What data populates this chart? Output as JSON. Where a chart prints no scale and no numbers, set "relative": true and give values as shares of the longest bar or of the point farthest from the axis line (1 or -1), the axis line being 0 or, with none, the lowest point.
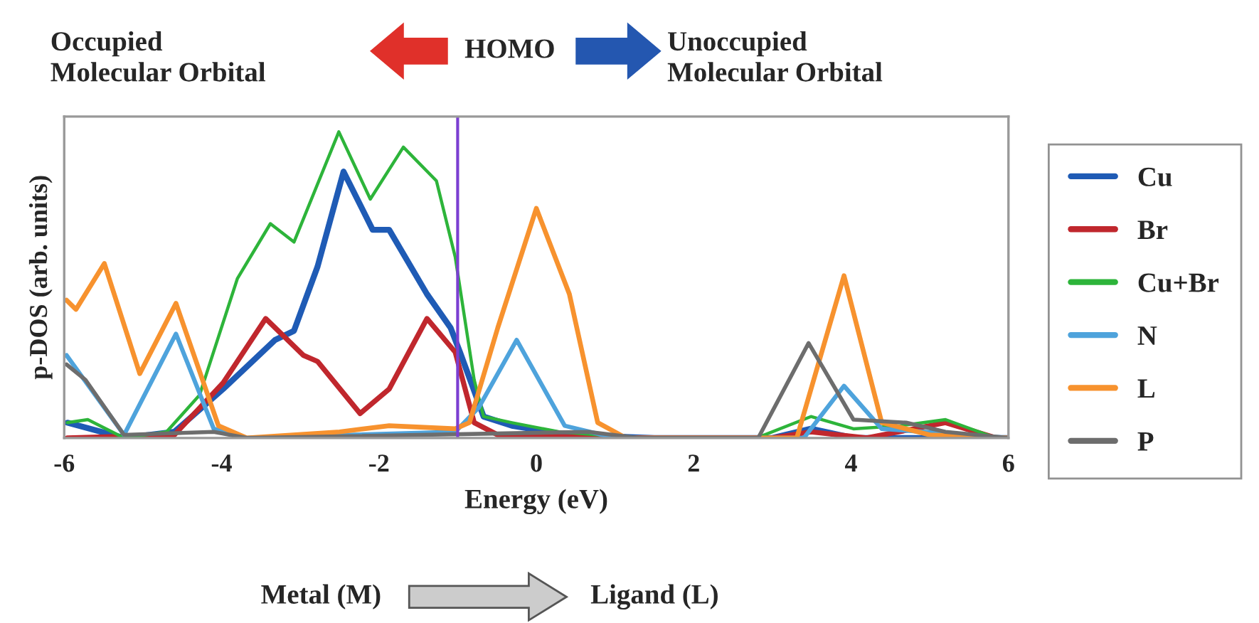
{
  "chart_data": {
    "type": "line",
    "relative": true,
    "xlabel": "Energy (eV)",
    "ylabel": "p-DOS (arb. units)",
    "xlim": [
      -6,
      6
    ],
    "xticks": [
      -6,
      -4,
      -2,
      0,
      2,
      4,
      6
    ],
    "grid": false,
    "legend": "right",
    "marker": "none",
    "line_style": "solid",
    "ref_lines": [
      {
        "axis": "x",
        "value": -1,
        "color": "#7b3fd1"
      }
    ],
    "annotations": [
      "Occupied\nMolecular Orbital",
      "HOMO",
      "Unoccupied\nMolecular Orbital",
      "Metal (M)",
      "Ligand (L)"
    ],
    "series": [
      {
        "name": "Cu",
        "color": "#1f5bb5",
        "x": [
          -5.96,
          -5.24,
          -4.6,
          -3.98,
          -3.32,
          -3.08,
          -2.78,
          -2.45,
          -2.08,
          -1.87,
          -1.39,
          -1.09,
          -0.97,
          -0.67,
          -0.31,
          0.4,
          1.5,
          3.0,
          3.49,
          4.03,
          6.0
        ],
        "values": [
          0.05,
          0,
          0.02,
          0.16,
          0.32,
          0.35,
          0.56,
          0.87,
          0.68,
          0.68,
          0.47,
          0.36,
          0.28,
          0.07,
          0.04,
          0.01,
          0,
          0,
          0.03,
          0,
          0
        ]
      },
      {
        "name": "Br",
        "color": "#c0272d",
        "x": [
          -5.96,
          -4.6,
          -3.98,
          -3.44,
          -2.96,
          -2.78,
          -2.24,
          -1.87,
          -1.39,
          -1.03,
          -0.79,
          -0.49,
          1.0,
          3.0,
          3.49,
          4.2,
          5.2,
          5.84,
          6.0
        ],
        "values": [
          0,
          0.01,
          0.18,
          0.39,
          0.27,
          0.25,
          0.08,
          0.16,
          0.39,
          0.28,
          0.05,
          0.01,
          0,
          0,
          0.02,
          0,
          0.05,
          0,
          0
        ]
      },
      {
        "name": "Cu+Br",
        "color": "#2db43a",
        "x": [
          -5.96,
          -5.7,
          -5.24,
          -4.7,
          -4.28,
          -3.8,
          -3.38,
          -3.08,
          -2.51,
          -2.11,
          -1.69,
          -1.27,
          -1.03,
          -0.79,
          -0.67,
          -0.31,
          0.29,
          1.3,
          2.8,
          3.49,
          4.03,
          4.63,
          5.2,
          5.84,
          6.0
        ],
        "values": [
          0.05,
          0.06,
          0,
          0.02,
          0.14,
          0.52,
          0.7,
          0.64,
          1.0,
          0.78,
          0.95,
          0.84,
          0.59,
          0.19,
          0.07,
          0.05,
          0.02,
          0,
          0,
          0.07,
          0.03,
          0.04,
          0.06,
          0,
          0
        ]
      },
      {
        "name": "N",
        "color": "#4ea3dc",
        "x": [
          -5.97,
          -5.24,
          -4.58,
          -4.1,
          -3.68,
          -1.03,
          -0.73,
          -0.25,
          0.36,
          1.0,
          3.4,
          3.91,
          4.39,
          6.0
        ],
        "values": [
          0.27,
          0.01,
          0.34,
          0.03,
          0,
          0.02,
          0.1,
          0.32,
          0.04,
          0,
          0,
          0.17,
          0.03,
          0
        ]
      },
      {
        "name": "L",
        "color": "#f7922e",
        "x": [
          -5.97,
          -5.85,
          -5.49,
          -5.04,
          -4.58,
          -4.04,
          -3.68,
          -2.5,
          -1.87,
          -1.03,
          -0.85,
          -0.49,
          0.0,
          0.42,
          0.78,
          1.14,
          3.31,
          3.91,
          4.39,
          5.0,
          6.0
        ],
        "values": [
          0.45,
          0.42,
          0.57,
          0.21,
          0.44,
          0.04,
          0,
          0.02,
          0.04,
          0.03,
          0.05,
          0.36,
          0.75,
          0.47,
          0.05,
          0,
          0,
          0.53,
          0.05,
          0.01,
          0
        ]
      },
      {
        "name": "P",
        "color": "#6d6d6d",
        "x": [
          -5.97,
          -5.73,
          -5.24,
          -4.1,
          -3.68,
          0.66,
          1.3,
          2.82,
          3.46,
          4.03,
          4.7,
          5.2,
          6.0
        ],
        "values": [
          0.24,
          0.19,
          0.01,
          0.02,
          0,
          0.02,
          0,
          0,
          0.31,
          0.06,
          0.05,
          0.02,
          0
        ]
      }
    ]
  }
}
